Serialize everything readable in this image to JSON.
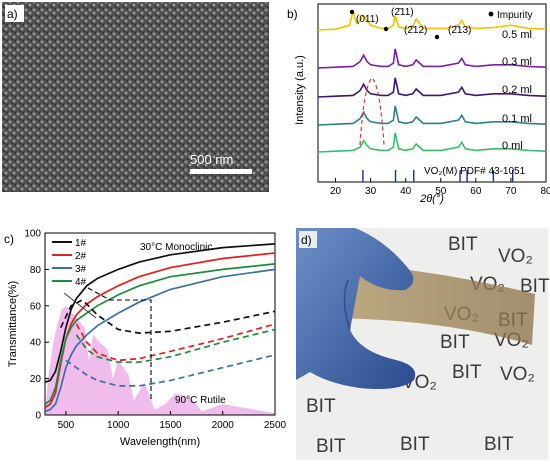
{
  "panels": {
    "a": {
      "label": "a)",
      "scale_bar": "500 nm"
    },
    "b": {
      "label": "b)",
      "xlabel": "2θ(°)",
      "ylabel": "Intensity (a.u.)",
      "xlim": [
        15,
        80
      ],
      "xticks": [
        "20",
        "30",
        "40",
        "50",
        "60",
        "70",
        "80"
      ],
      "peak_labels": [
        "(011)",
        "(2̄11)",
        "(2̄12)",
        "(2̄13)"
      ],
      "impurity_legend": "Impurity",
      "reference": "VO₂(M) PDF# 43-1051"
    },
    "c": {
      "label": "c)",
      "xlabel": "Wavelength(nm)",
      "ylabel": "Transmittance(%)",
      "xticks": [
        "500",
        "1000",
        "1500",
        "2000",
        "2500"
      ],
      "yticks": [
        "0",
        "20",
        "40",
        "60",
        "80",
        "100"
      ],
      "ann_solid": "30°C Monoclinic",
      "ann_dashed": "90°C Rutile"
    },
    "d": {
      "label": "d)",
      "photo_words": [
        "BIT",
        "VO₂",
        "BIT",
        "VO₂",
        "BIT",
        "VO₂",
        "BIT",
        "VO₂",
        "BIT",
        "BIT",
        "VO₂",
        "VO₂",
        "BIT",
        "VO₂",
        "BIT",
        "VO₂",
        "BIT",
        "BIT",
        "BIT"
      ]
    }
  },
  "chart_data": [
    {
      "type": "line",
      "panel": "b",
      "xlabel": "2θ(°)",
      "ylabel": "Intensity (a.u.)",
      "xlim": [
        15,
        80
      ],
      "series": [
        {
          "name": "0.5 ml",
          "color": "#f2c200",
          "x": [
            15,
            20,
            24,
            25,
            26,
            27,
            28,
            30,
            33,
            35,
            36.5,
            37,
            38,
            40,
            42,
            43,
            45,
            50,
            52,
            55,
            56,
            57,
            60,
            65,
            70,
            75,
            80
          ],
          "y": [
            0,
            0.5,
            3,
            12,
            4,
            6,
            9,
            3,
            1,
            1,
            3,
            9,
            2,
            1,
            2,
            7,
            1,
            1,
            1,
            3,
            6,
            2,
            1,
            1.5,
            3,
            1,
            0.5
          ]
        },
        {
          "name": "0.3 ml",
          "color": "#7a1fa2",
          "x": [
            15,
            20,
            25,
            27,
            28,
            29,
            30,
            33,
            35,
            36.5,
            37,
            38,
            40,
            42,
            43,
            45,
            50,
            55,
            56,
            57,
            60,
            65,
            70,
            75,
            80
          ],
          "y": [
            0,
            0.5,
            1,
            4,
            8,
            4,
            2,
            1,
            1,
            3,
            12,
            2,
            1,
            2,
            5,
            1,
            1,
            3,
            6,
            2,
            1,
            2,
            2,
            1,
            0.5
          ]
        },
        {
          "name": "0.2 ml",
          "color": "#3c1670",
          "x": [
            15,
            20,
            25,
            27,
            28,
            29,
            30,
            33,
            35,
            36.5,
            37,
            38,
            40,
            42,
            43,
            45,
            50,
            55,
            56,
            57,
            60,
            65,
            70,
            75,
            80
          ],
          "y": [
            0,
            0.5,
            1,
            4,
            8,
            4,
            2,
            1,
            1,
            3,
            12,
            2,
            1,
            2,
            5,
            1,
            1,
            3,
            6,
            2,
            1,
            2,
            2,
            1,
            0.5
          ]
        },
        {
          "name": "0.1 ml",
          "color": "#2f7f86",
          "x": [
            15,
            20,
            25,
            27,
            28,
            29,
            30,
            33,
            35,
            36.5,
            37,
            38,
            40,
            42,
            43,
            45,
            50,
            55,
            56,
            57,
            60,
            65,
            70,
            75,
            80
          ],
          "y": [
            0,
            0.5,
            1,
            4,
            8,
            4,
            2,
            1,
            1,
            3,
            12,
            2,
            1,
            2,
            5,
            1,
            1,
            3,
            6,
            2,
            1,
            2,
            2,
            1,
            0.5
          ]
        },
        {
          "name": "0 ml",
          "color": "#3dbb6a",
          "x": [
            15,
            20,
            25,
            27,
            28,
            29,
            30,
            33,
            35,
            36.5,
            37,
            38,
            40,
            42,
            43,
            45,
            50,
            55,
            56,
            57,
            60,
            65,
            70,
            75,
            80
          ],
          "y": [
            0,
            0.5,
            1,
            3,
            7,
            4,
            2,
            1,
            1,
            3,
            12,
            2,
            1,
            2,
            5,
            1,
            1,
            3,
            6,
            2,
            1,
            2,
            2,
            1,
            0.5
          ]
        }
      ],
      "reference_lines_x": [
        27.8,
        37.1,
        42.3,
        55.5,
        57.5,
        65.0,
        70.5
      ]
    },
    {
      "type": "line",
      "panel": "c",
      "xlabel": "Wavelength(nm)",
      "ylabel": "Transmittance(%)",
      "xlim": [
        300,
        2500
      ],
      "ylim": [
        0,
        100
      ],
      "series": [
        {
          "name": "1#",
          "color": "#111111",
          "style": "solid",
          "x": [
            300,
            350,
            400,
            450,
            500,
            550,
            600,
            700,
            800,
            1000,
            1200,
            1500,
            2000,
            2500
          ],
          "y": [
            18,
            19,
            24,
            35,
            48,
            58,
            64,
            71,
            75,
            80,
            84,
            88,
            92,
            94
          ]
        },
        {
          "name": "2#",
          "color": "#e02020",
          "style": "solid",
          "x": [
            300,
            350,
            400,
            450,
            500,
            550,
            600,
            700,
            800,
            1000,
            1200,
            1500,
            2000,
            2500
          ],
          "y": [
            4,
            6,
            12,
            28,
            42,
            50,
            55,
            61,
            65,
            71,
            76,
            81,
            86,
            89
          ]
        },
        {
          "name": "3#",
          "color": "#3b6fa8",
          "style": "solid",
          "x": [
            300,
            350,
            400,
            450,
            500,
            550,
            600,
            700,
            800,
            1000,
            1200,
            1500,
            2000,
            2500
          ],
          "y": [
            2,
            3,
            6,
            15,
            26,
            33,
            38,
            44,
            49,
            56,
            62,
            69,
            76,
            80
          ]
        },
        {
          "name": "4#",
          "color": "#1e8a3c",
          "style": "solid",
          "x": [
            300,
            350,
            400,
            450,
            500,
            550,
            600,
            700,
            800,
            1000,
            1200,
            1500,
            2000,
            2500
          ],
          "y": [
            6,
            8,
            15,
            30,
            42,
            48,
            52,
            56,
            60,
            66,
            71,
            76,
            80,
            83
          ]
        },
        {
          "name": "1# (90°C)",
          "color": "#111111",
          "style": "dashed",
          "x": [
            450,
            550,
            650,
            700,
            800,
            1000,
            1200,
            1500,
            2000,
            2500
          ],
          "y": [
            48,
            60,
            63,
            61,
            55,
            47,
            45,
            46,
            51,
            57
          ]
        },
        {
          "name": "2# (90°C)",
          "color": "#e02020",
          "style": "dashed",
          "x": [
            600,
            700,
            800,
            1000,
            1200,
            1500,
            2000,
            2500
          ],
          "y": [
            50,
            40,
            34,
            30,
            31,
            35,
            42,
            50
          ]
        },
        {
          "name": "3# (90°C)",
          "color": "#3b6fa8",
          "style": "dashed",
          "x": [
            500,
            600,
            700,
            800,
            1000,
            1200,
            1500,
            2000,
            2500
          ],
          "y": [
            30,
            26,
            22,
            19,
            16,
            16,
            19,
            26,
            33
          ]
        },
        {
          "name": "4# (90°C)",
          "color": "#1e8a3c",
          "style": "dashed",
          "x": [
            600,
            700,
            800,
            1000,
            1200,
            1500,
            2000,
            2500
          ],
          "y": [
            44,
            36,
            32,
            29,
            29,
            32,
            40,
            47
          ]
        }
      ],
      "legend": {
        "position": "top-left"
      }
    }
  ]
}
